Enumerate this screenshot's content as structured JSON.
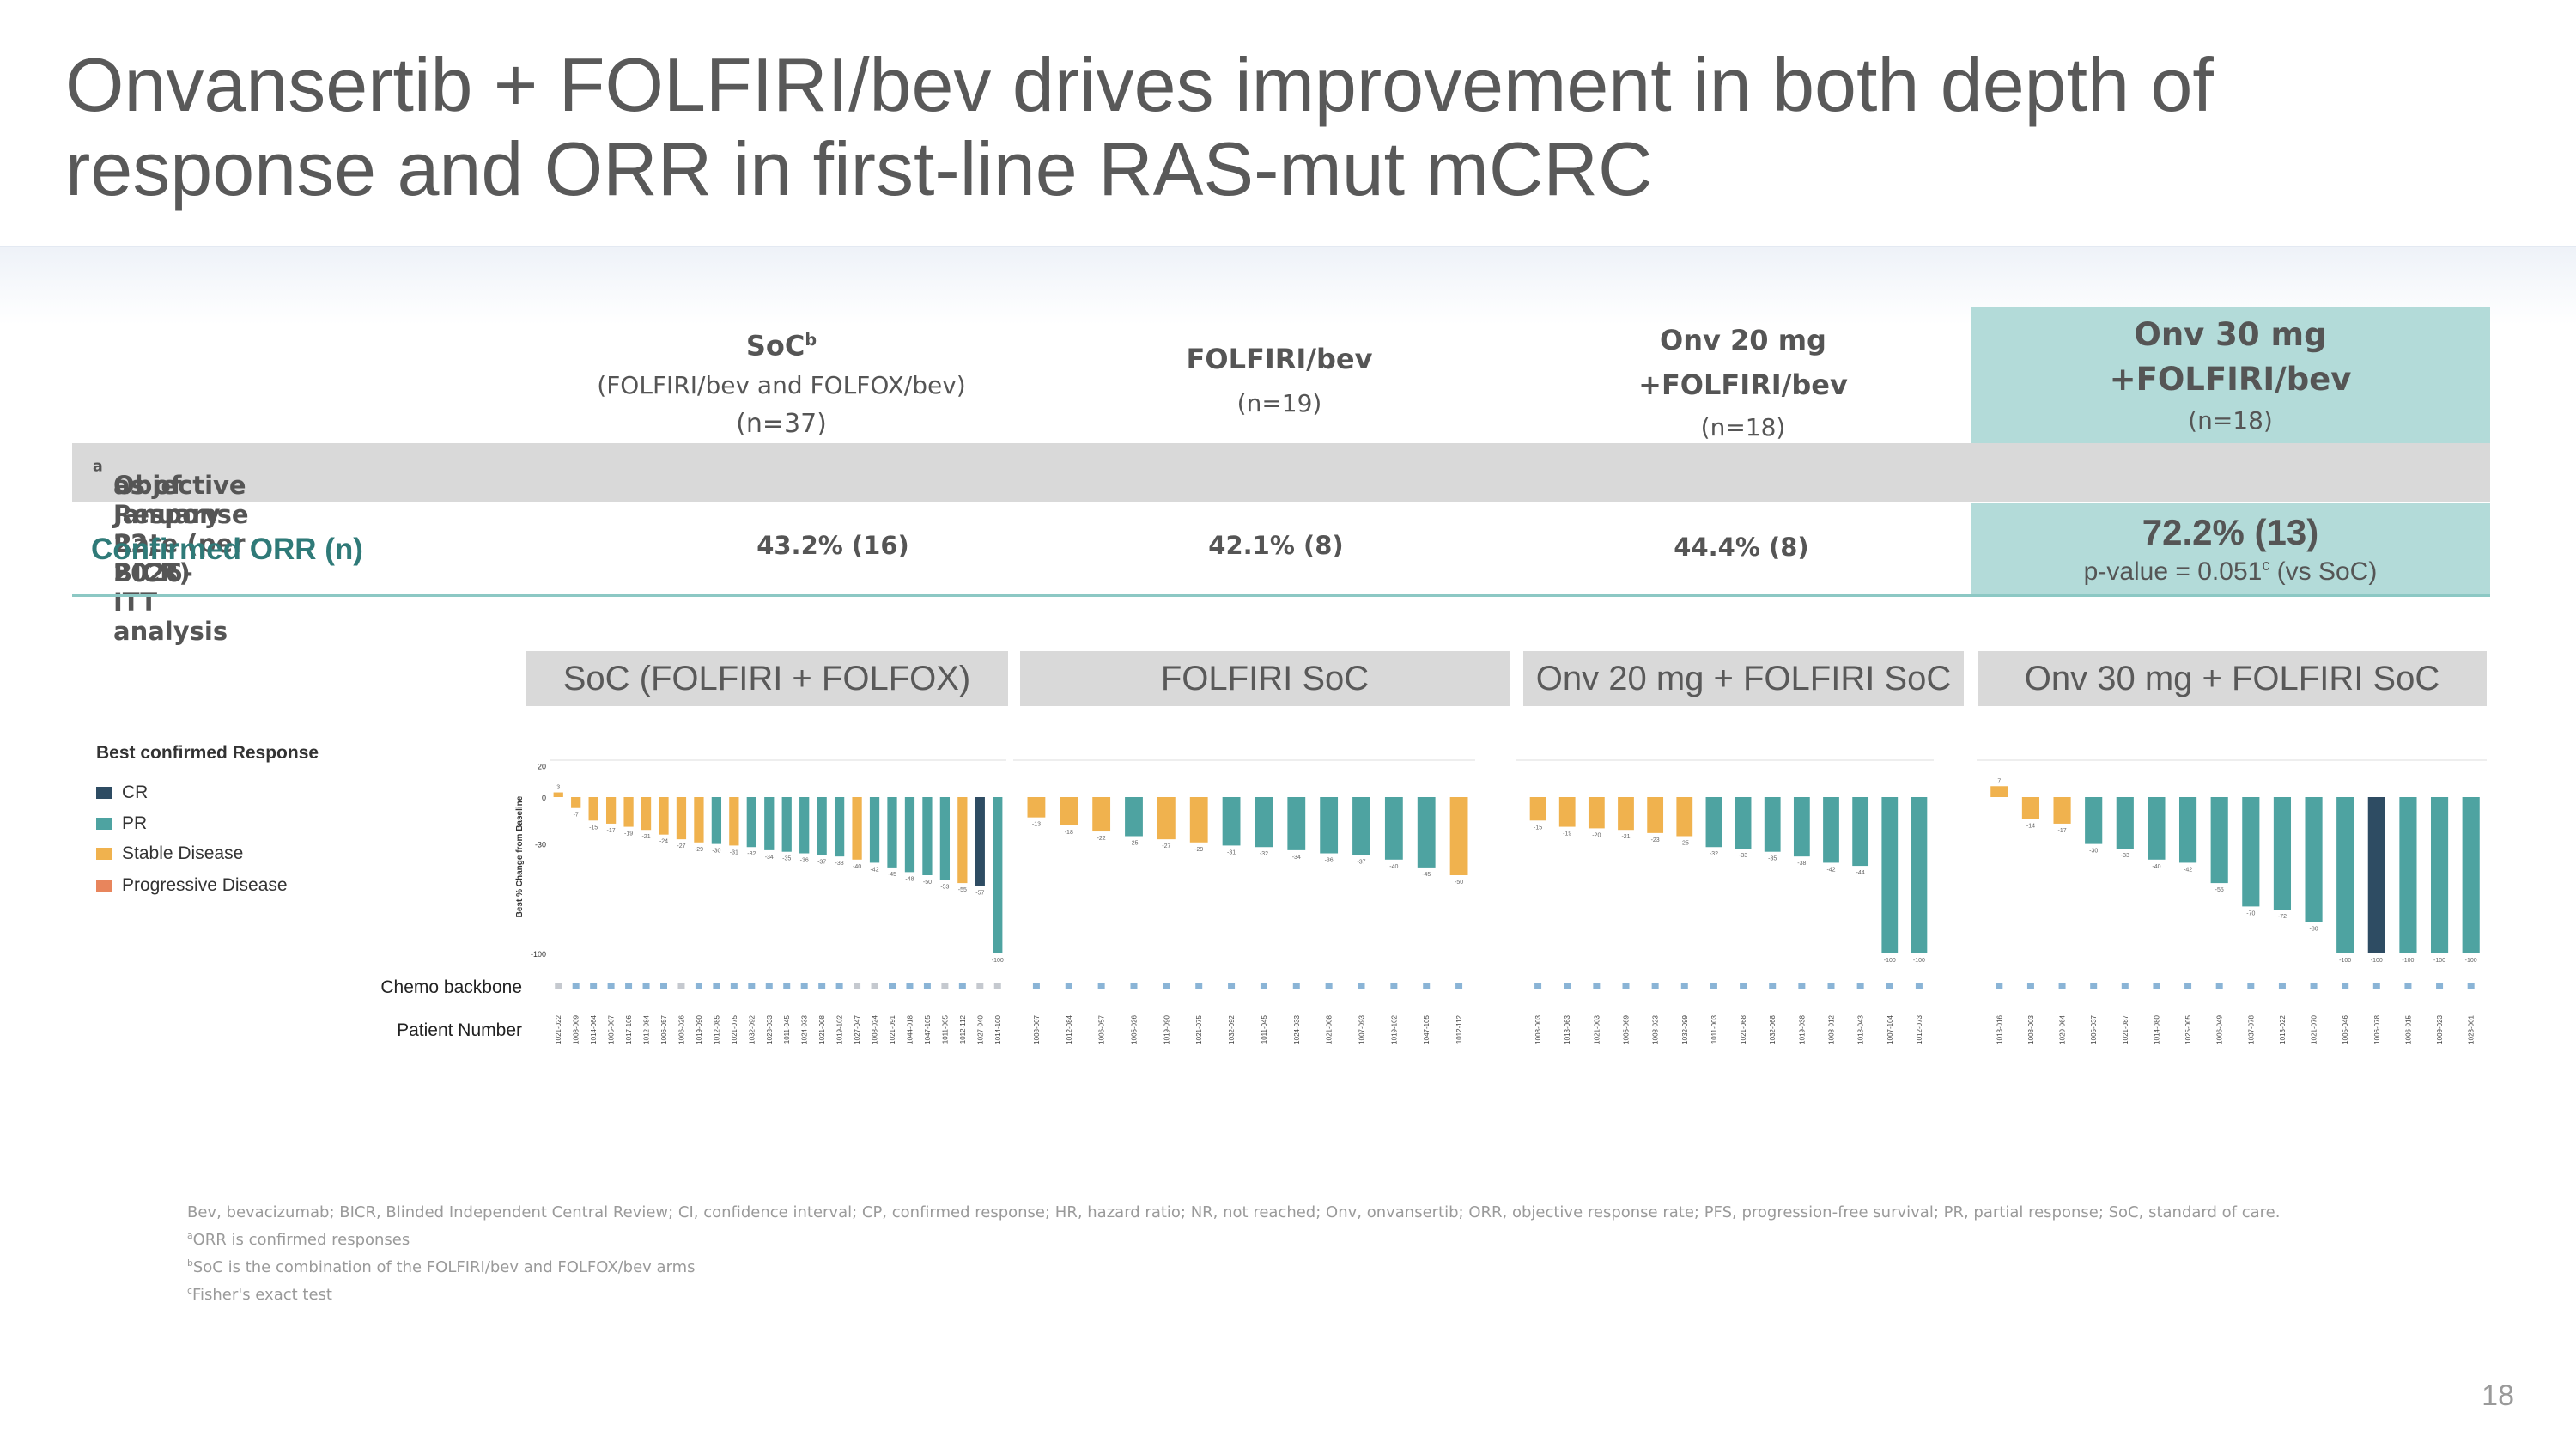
{
  "title": "Onvansertib + FOLFIRI/bev drives improvement in both depth of response and ORR in first-line RAS-mut mCRC",
  "table": {
    "columns": [
      {
        "name": "SoC",
        "sup": "b",
        "sub": "(FOLFIRI/bev and FOLFOX/bev)",
        "n": "(n=37)"
      },
      {
        "name": "FOLFIRI/bev",
        "sub": "",
        "n": "(n=19)"
      },
      {
        "name": "Onv 20 mg",
        "sub": "+FOLFIRI/bev",
        "n": "(n=18)"
      },
      {
        "name": "Onv 30 mg",
        "sub": "+FOLFIRI/bev",
        "n": "(n=18)"
      }
    ],
    "orr_section_label": "Objective Response Rate (per BICR)",
    "orr_section_sup": "a",
    "orr_section_suffix": " as of January 22, 2026- ITT analysis",
    "confirmed_label": "Confirmed ORR (n)",
    "orr_values": [
      "43.2% (16)",
      "42.1% (8)",
      "44.4% (8)",
      "72.2% (13)"
    ],
    "pvalue_prefix": "p-value = 0.051",
    "pvalue_sup": "c",
    "pvalue_suffix": " (vs SoC)"
  },
  "legend": {
    "title": "Best confirmed Response",
    "items": [
      {
        "label": "CR",
        "color": "#2e4c63"
      },
      {
        "label": "PR",
        "color": "#4ea3a1"
      },
      {
        "label": "Stable Disease",
        "color": "#f0b24e"
      },
      {
        "label": "Progressive Disease",
        "color": "#e8855c"
      }
    ]
  },
  "row_labels": {
    "chemo": "Chemo backbone",
    "patient": "Patient Number"
  },
  "footnotes": [
    "Bev, bevacizumab; BICR, Blinded Independent Central Review; CI, confidence interval; CP, confirmed response; HR, hazard ratio; NR, not reached; Onv, onvansertib; ORR, objective response rate; PFS, progression-free survival; PR, partial response; SoC, standard of care.",
    "ORR is confirmed responses",
    "SoC is the combination of the FOLFIRI/bev and FOLFOX/bev arms",
    "Fisher's exact test"
  ],
  "footnote_marks": [
    "",
    "a",
    "b",
    "c"
  ],
  "page_number": "18",
  "chart_data": {
    "type": "bar",
    "ylabel": "Best % Change from Baseline",
    "yticks": [
      20,
      0,
      -30,
      -100
    ],
    "ylim": [
      -100,
      20
    ],
    "panels": [
      {
        "title": "SoC (FOLFIRI + FOLFOX)",
        "categories": [
          "1021-022",
          "1008-009",
          "1014-064",
          "1005-007",
          "1017-106",
          "1012-084",
          "1006-057",
          "1006-026",
          "1019-090",
          "1012-085",
          "1021-075",
          "1032-092",
          "1028-033",
          "1011-045",
          "1024-033",
          "1021-008",
          "1019-102",
          "1027-047",
          "1008-024",
          "1021-091",
          "1044-018",
          "1047-105",
          "1011-005",
          "1012-112",
          "1027-040",
          "1014-100"
        ],
        "values": [
          3,
          -7,
          -15,
          -17,
          -19,
          -21,
          -24,
          -27,
          -29,
          -30,
          -31,
          -32,
          -34,
          -35,
          -36,
          -37,
          -38,
          -40,
          -42,
          -45,
          -48,
          -50,
          -53,
          -55,
          -57,
          -100
        ],
        "responses": [
          "SD",
          "SD",
          "SD",
          "SD",
          "SD",
          "SD",
          "SD",
          "SD",
          "SD",
          "PR",
          "SD",
          "PR",
          "PR",
          "PR",
          "PR",
          "PR",
          "PR",
          "SD",
          "PR",
          "PR",
          "PR",
          "PR",
          "PR",
          "SD",
          "CR",
          "PR"
        ],
        "chemo": [
          "FOLFOX",
          "FOLFIRI",
          "FOLFIRI",
          "FOLFIRI",
          "FOLFIRI",
          "FOLFIRI",
          "FOLFIRI",
          "FOLFOX",
          "FOLFIRI",
          "FOLFIRI",
          "FOLFIRI",
          "FOLFIRI",
          "FOLFIRI",
          "FOLFIRI",
          "FOLFIRI",
          "FOLFIRI",
          "FOLFIRI",
          "FOLFOX",
          "FOLFOX",
          "FOLFIRI",
          "FOLFIRI",
          "FOLFIRI",
          "FOLFOX",
          "FOLFIRI",
          "FOLFOX",
          "FOLFOX"
        ]
      },
      {
        "title": "FOLFIRI SoC",
        "categories": [
          "1008-007",
          "1012-084",
          "1006-057",
          "1005-026",
          "1019-090",
          "1021-075",
          "1032-092",
          "1011-045",
          "1024-033",
          "1021-008",
          "1007-093",
          "1019-102",
          "1047-105",
          "1012-112"
        ],
        "values": [
          -13,
          -18,
          -22,
          -25,
          -27,
          -29,
          -31,
          -32,
          -34,
          -36,
          -37,
          -40,
          -45,
          -50
        ],
        "responses": [
          "SD",
          "SD",
          "SD",
          "PR",
          "SD",
          "SD",
          "PR",
          "PR",
          "PR",
          "PR",
          "PR",
          "PR",
          "PR",
          "SD"
        ],
        "chemo": [
          "FOLFIRI",
          "FOLFIRI",
          "FOLFIRI",
          "FOLFIRI",
          "FOLFIRI",
          "FOLFIRI",
          "FOLFIRI",
          "FOLFIRI",
          "FOLFIRI",
          "FOLFIRI",
          "FOLFIRI",
          "FOLFIRI",
          "FOLFIRI",
          "FOLFIRI"
        ]
      },
      {
        "title": "Onv 20 mg + FOLFIRI SoC",
        "categories": [
          "1008-003",
          "1013-063",
          "1021-003",
          "1005-069",
          "1008-023",
          "1032-099",
          "1011-003",
          "1021-068",
          "1032-068",
          "1019-038",
          "1008-012",
          "1018-043",
          "1007-104",
          "1012-073"
        ],
        "values": [
          -15,
          -19,
          -20,
          -21,
          -23,
          -25,
          -32,
          -33,
          -35,
          -38,
          -42,
          -44,
          -100,
          -100
        ],
        "responses": [
          "SD",
          "SD",
          "SD",
          "SD",
          "SD",
          "SD",
          "PR",
          "PR",
          "PR",
          "PR",
          "PR",
          "PR",
          "PR",
          "PR"
        ],
        "chemo": [
          "FOLFIRI",
          "FOLFIRI",
          "FOLFIRI",
          "FOLFIRI",
          "FOLFIRI",
          "FOLFIRI",
          "FOLFIRI",
          "FOLFIRI",
          "FOLFIRI",
          "FOLFIRI",
          "FOLFIRI",
          "FOLFIRI",
          "FOLFIRI",
          "FOLFIRI"
        ]
      },
      {
        "title": "Onv 30 mg + FOLFIRI SoC",
        "categories": [
          "1013-016",
          "1008-003",
          "1020-064",
          "1005-037",
          "1021-087",
          "1014-080",
          "1025-005",
          "1006-049",
          "1037-078",
          "1013-022",
          "1021-070",
          "1005-046",
          "1006-078",
          "1006-015",
          "1009-023",
          "1023-001"
        ],
        "values": [
          7,
          -14,
          -17,
          -30,
          -33,
          -40,
          -42,
          -55,
          -70,
          -72,
          -80,
          -100,
          -100,
          -100,
          -100,
          -100
        ],
        "responses": [
          "SD",
          "SD",
          "SD",
          "PR",
          "PR",
          "PR",
          "PR",
          "PR",
          "PR",
          "PR",
          "PR",
          "PR",
          "CR",
          "PR",
          "PR",
          "PR"
        ],
        "chemo": [
          "FOLFIRI",
          "FOLFIRI",
          "FOLFIRI",
          "FOLFIRI",
          "FOLFIRI",
          "FOLFIRI",
          "FOLFIRI",
          "FOLFIRI",
          "FOLFIRI",
          "FOLFIRI",
          "FOLFIRI",
          "FOLFIRI",
          "FOLFIRI",
          "FOLFIRI",
          "FOLFIRI",
          "FOLFIRI"
        ]
      }
    ],
    "colors": {
      "CR": "#2e4c63",
      "PR": "#4ea3a1",
      "SD": "#f0b24e",
      "PD": "#e8855c",
      "FOLFIRI": "#8ab4d6",
      "FOLFOX": "#c5c9cf"
    }
  }
}
